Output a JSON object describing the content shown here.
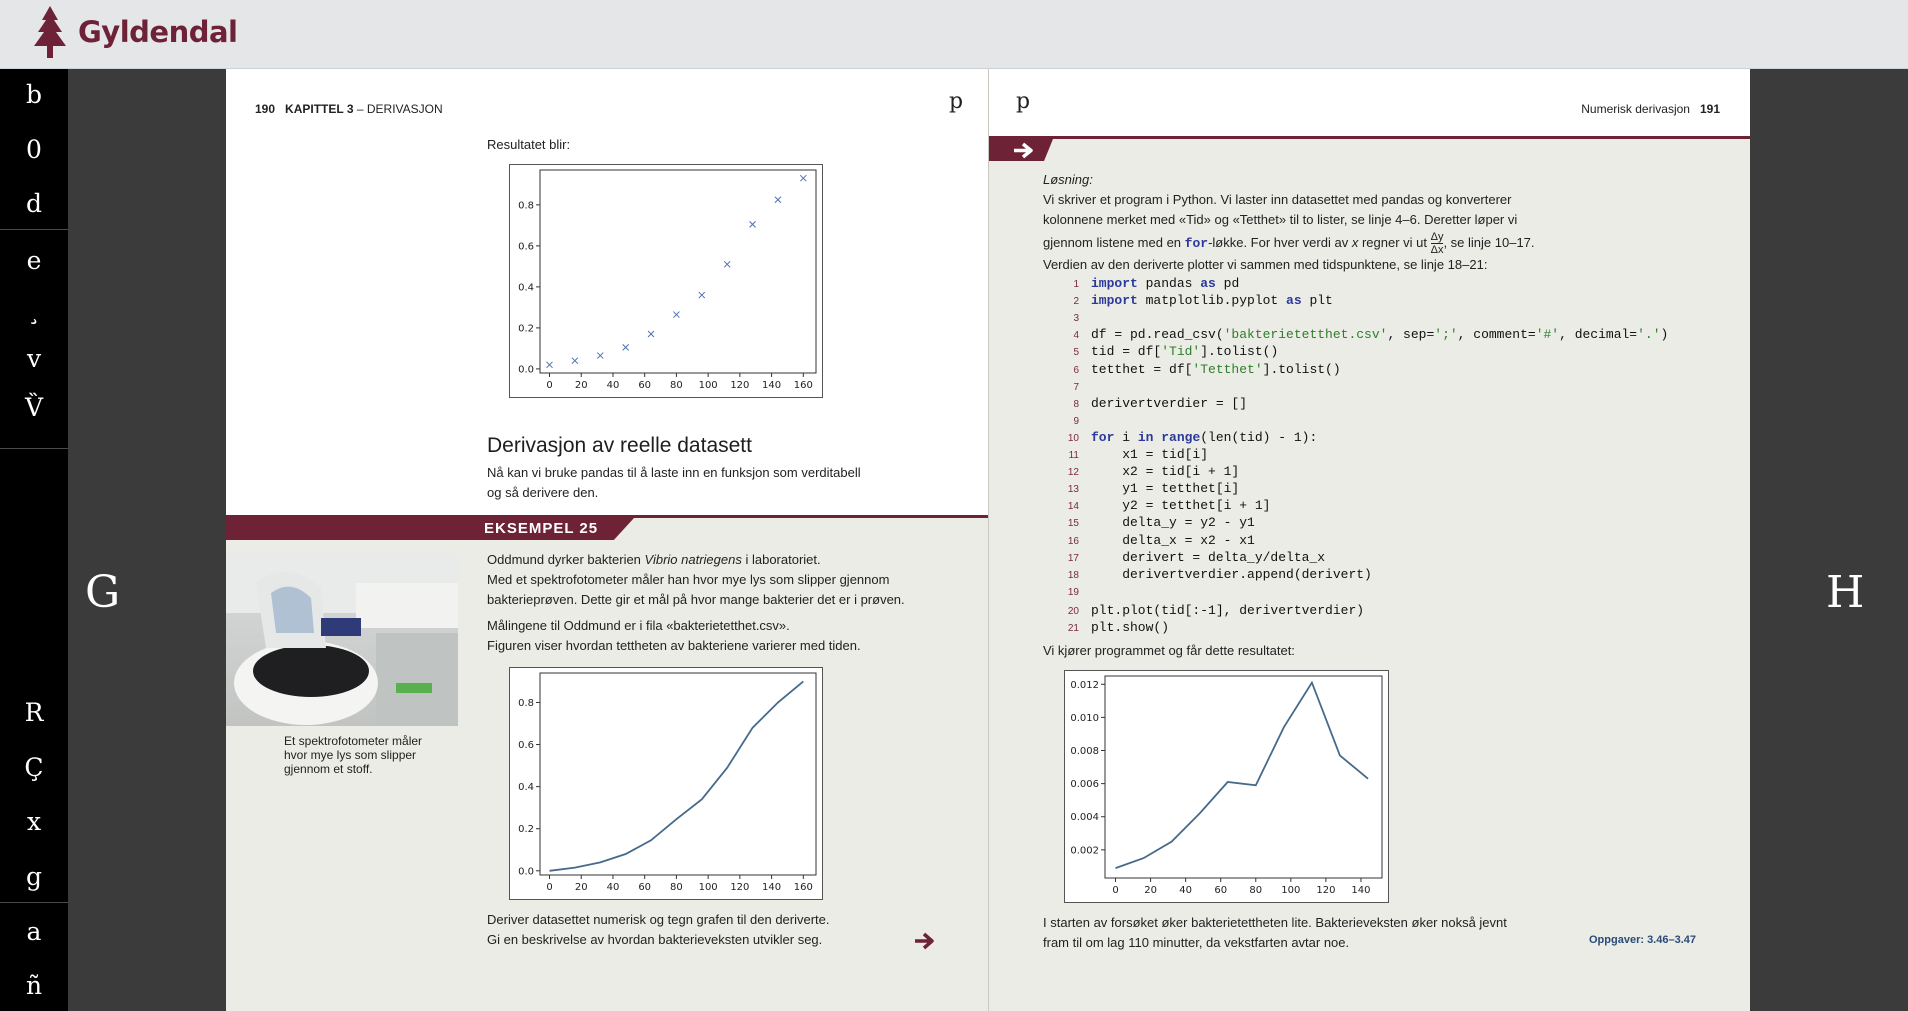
{
  "header": {
    "brand": "Gyldendal"
  },
  "sidebar": {
    "items": [
      {
        "glyph": "b",
        "icon": "bookmark-icon"
      },
      {
        "glyph": "0",
        "icon": "zero-icon"
      },
      {
        "glyph": "d",
        "icon": "d-icon"
      },
      {
        "glyph": "e",
        "icon": "e-icon"
      },
      {
        "glyph": "¸",
        "icon": "cedilla-icon"
      },
      {
        "glyph": "v",
        "icon": "v-icon"
      },
      {
        "glyph": "V̏",
        "icon": "v-double-grave-icon"
      },
      {
        "glyph": "R",
        "icon": "r-icon"
      },
      {
        "glyph": "Ç",
        "icon": "c-cedilla-icon"
      },
      {
        "glyph": "x",
        "icon": "close-icon"
      },
      {
        "glyph": "g",
        "icon": "g-icon"
      },
      {
        "glyph": "a",
        "icon": "a-icon"
      },
      {
        "glyph": "ñ",
        "icon": "n-tilde-icon"
      }
    ]
  },
  "nav": {
    "prev": "G",
    "next": "H"
  },
  "left_page": {
    "page_number": "190",
    "chapter_label": "KAPITTEL 3",
    "chapter_title": "– DERIVASJON",
    "p_glyph": "p",
    "result_label": "Resultatet blir:",
    "section_heading": "Derivasjon av reelle datasett",
    "section_text_1": "Nå kan vi bruke pandas til å laste inn en funksjon som verditabell",
    "section_text_2": "og så derivere den.",
    "example_label": "EKSEMPEL 25",
    "ex_text_1a": "Oddmund dyrker bakterien ",
    "ex_text_1b": "Vibrio natriegens",
    "ex_text_1c": " i laboratoriet.",
    "ex_text_2": "Med et spektrofotometer måler han hvor mye lys som slipper gjennom",
    "ex_text_3": "bakterieprøven. Dette gir et mål på hvor mange bakterier det er i prøven.",
    "ex_text_4": "Målingene til Oddmund er i fila «bakterietetthet.csv».",
    "ex_text_5": "Figuren viser hvordan tettheten av bakteriene varierer med tiden.",
    "caption_1": "Et spektrofotometer måler",
    "caption_2": "hvor mye lys som slipper",
    "caption_3": "gjennom et stoff.",
    "task_1": "Deriver datasettet numerisk og tegn grafen til den deriverte.",
    "task_2": "Gi en beskrivelse av hvordan bakterieveksten utvikler seg."
  },
  "right_page": {
    "page_number": "191",
    "section_title": "Numerisk derivasjon",
    "p_glyph": "p",
    "solution_label": "Løsning:",
    "sol_1": "Vi skriver et program i Python. Vi laster inn datasettet med pandas og konverterer",
    "sol_2": "kolonnene merket med «Tid» og «Tetthet» til to lister, se linje 4–6. Deretter løper vi",
    "sol_3a": "gjennom listene med en ",
    "sol_3b": "for",
    "sol_3c": "-løkke. For hver verdi av ",
    "sol_3d": "x",
    "sol_3e": " regner vi ut ",
    "sol_frac_num": "Δy",
    "sol_frac_den": "Δx",
    "sol_3f": ", se linje 10–17.",
    "sol_4": "Verdien av den deriverte plotter vi sammen med tidspunktene, se linje 18–21:",
    "code": [
      {
        "n": "1",
        "t": "import pandas as pd"
      },
      {
        "n": "2",
        "t": "import matplotlib.pyplot as plt"
      },
      {
        "n": "3",
        "t": ""
      },
      {
        "n": "4",
        "t": "df = pd.read_csv('bakterietetthet.csv', sep=';', comment='#', decimal='.')"
      },
      {
        "n": "5",
        "t": "tid = df['Tid'].tolist()"
      },
      {
        "n": "6",
        "t": "tetthet = df['Tetthet'].tolist()"
      },
      {
        "n": "7",
        "t": ""
      },
      {
        "n": "8",
        "t": "derivertverdier = []"
      },
      {
        "n": "9",
        "t": ""
      },
      {
        "n": "10",
        "t": "for i in range(len(tid) - 1):"
      },
      {
        "n": "11",
        "t": "    x1 = tid[i]"
      },
      {
        "n": "12",
        "t": "    x2 = tid[i + 1]"
      },
      {
        "n": "13",
        "t": "    y1 = tetthet[i]"
      },
      {
        "n": "14",
        "t": "    y2 = tetthet[i + 1]"
      },
      {
        "n": "15",
        "t": "    delta_y = y2 - y1"
      },
      {
        "n": "16",
        "t": "    delta_x = x2 - x1"
      },
      {
        "n": "17",
        "t": "    derivert = delta_y/delta_x"
      },
      {
        "n": "18",
        "t": "    derivertverdier.append(derivert)"
      },
      {
        "n": "19",
        "t": ""
      },
      {
        "n": "20",
        "t": "plt.plot(tid[:-1], derivertverdier)"
      },
      {
        "n": "21",
        "t": "plt.show()"
      }
    ],
    "run_label": "Vi kjører programmet og får dette resultatet:",
    "concl_1": "I starten av forsøket øker bakterietettheten lite. Bakterieveksten øker nokså jevnt",
    "concl_2": "fram til om lag 110 minutter, da vekstfarten avtar noe.",
    "oppgaver": "Oppgaver: 3.46–3.47"
  },
  "chart_data": [
    {
      "type": "scatter",
      "x": [
        0,
        16,
        32,
        48,
        64,
        80,
        96,
        112,
        128,
        144,
        160
      ],
      "y": [
        0.02,
        0.04,
        0.065,
        0.105,
        0.17,
        0.265,
        0.36,
        0.51,
        0.705,
        0.825,
        0.93
      ],
      "xlim": [
        -6,
        168
      ],
      "ylim": [
        -0.02,
        0.97
      ],
      "xticks": [
        0,
        20,
        40,
        60,
        80,
        100,
        120,
        140,
        160
      ],
      "yticks": [
        0.0,
        0.2,
        0.4,
        0.6,
        0.8
      ],
      "ytick_labels": [
        "0.0",
        "0.2",
        "0.4",
        "0.6",
        "0.8"
      ],
      "marker": "x",
      "color": "#4c72b0"
    },
    {
      "type": "line",
      "x": [
        0,
        16,
        32,
        48,
        64,
        80,
        96,
        112,
        128,
        144,
        160
      ],
      "y": [
        0.0,
        0.015,
        0.04,
        0.08,
        0.145,
        0.245,
        0.34,
        0.49,
        0.68,
        0.8,
        0.9
      ],
      "xlim": [
        -6,
        168
      ],
      "ylim": [
        -0.02,
        0.94
      ],
      "xticks": [
        0,
        20,
        40,
        60,
        80,
        100,
        120,
        140,
        160
      ],
      "yticks": [
        0.0,
        0.2,
        0.4,
        0.6,
        0.8
      ],
      "ytick_labels": [
        "0.0",
        "0.2",
        "0.4",
        "0.6",
        "0.8"
      ],
      "color": "#456a8c"
    },
    {
      "type": "line",
      "x": [
        0,
        16,
        32,
        48,
        64,
        80,
        96,
        112,
        128,
        144
      ],
      "y": [
        0.0009,
        0.0015,
        0.0025,
        0.0042,
        0.0061,
        0.0059,
        0.0094,
        0.0121,
        0.0077,
        0.0063
      ],
      "xlim": [
        -6,
        152
      ],
      "ylim": [
        0.0003,
        0.0125
      ],
      "xticks": [
        0,
        20,
        40,
        60,
        80,
        100,
        120,
        140
      ],
      "yticks": [
        0.002,
        0.004,
        0.006,
        0.008,
        0.01,
        0.012
      ],
      "ytick_labels": [
        "0.002",
        "0.004",
        "0.006",
        "0.008",
        "0.010",
        "0.012"
      ],
      "color": "#456a8c"
    }
  ]
}
